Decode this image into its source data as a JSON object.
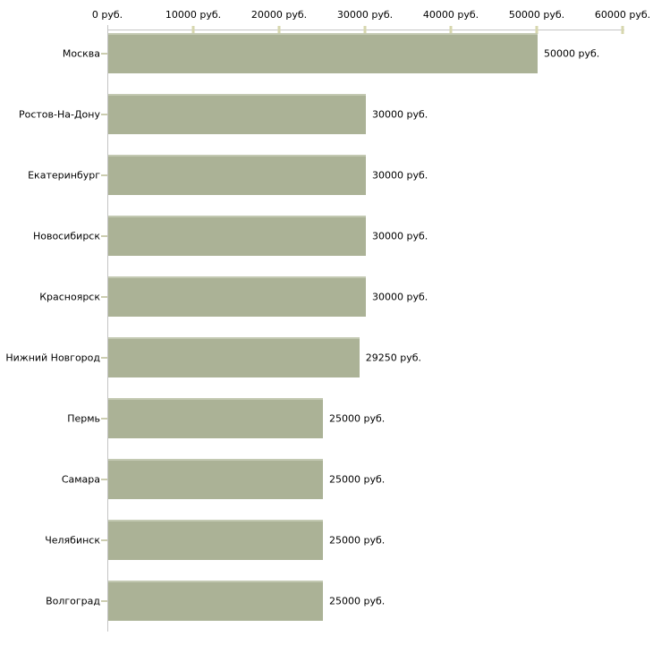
{
  "chart_data": {
    "type": "bar",
    "orientation": "horizontal",
    "title": "",
    "xlabel": "",
    "ylabel": "",
    "grid": false,
    "legend": false,
    "axis_position": "top",
    "categories": [
      "Москва",
      "Ростов-На-Дону",
      "Екатеринбург",
      "Новосибирск",
      "Красноярск",
      "Нижний Новгород",
      "Пермь",
      "Самара",
      "Челябинск",
      "Волгоград"
    ],
    "values": [
      50000,
      30000,
      30000,
      30000,
      30000,
      29250,
      25000,
      25000,
      25000,
      25000
    ],
    "value_labels": [
      "50000 руб.",
      "30000 руб.",
      "30000 руб.",
      "30000 руб.",
      "30000 руб.",
      "29250 руб.",
      "25000 руб.",
      "25000 руб.",
      "25000 руб.",
      "25000 руб."
    ],
    "xlim": [
      0,
      60000
    ],
    "x_ticks": [
      0,
      10000,
      20000,
      30000,
      40000,
      50000,
      60000
    ],
    "x_tick_labels": [
      "0 руб.",
      "10000 руб.",
      "20000 руб.",
      "30000 руб.",
      "40000 руб.",
      "50000 руб.",
      "60000 руб."
    ],
    "colors": {
      "bar_fill": "#abb296",
      "bar_highlight": "#c3c9b2",
      "axis_line": "#c4c4c4",
      "tick_mark": "#d7d7ae",
      "text": "#000000",
      "background": "#ffffff"
    }
  }
}
